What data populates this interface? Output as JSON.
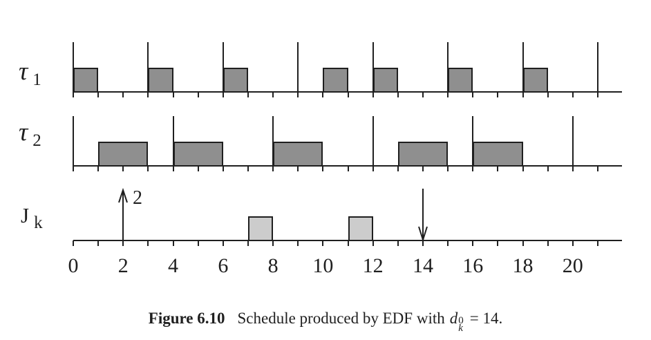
{
  "figure": {
    "caption": {
      "label": "Figure 6.10",
      "text": "Schedule produced by EDF with",
      "math_base": "d",
      "math_sup": "0",
      "math_sub": "k",
      "math_tail": "= 14."
    }
  },
  "chart_data": {
    "type": "gantt-schedule",
    "x_axis": {
      "min": 0,
      "max": 22,
      "tick_step": 1,
      "tick_range": [
        0,
        21
      ],
      "labels": [
        {
          "t": 0,
          "text": "0"
        },
        {
          "t": 2,
          "text": "2"
        },
        {
          "t": 4,
          "text": "4"
        },
        {
          "t": 6,
          "text": "6"
        },
        {
          "t": 8,
          "text": "8"
        },
        {
          "t": 10,
          "text": "10"
        },
        {
          "t": 12,
          "text": "12"
        },
        {
          "t": 14,
          "text": "14"
        },
        {
          "t": 16,
          "text": "16"
        },
        {
          "t": 18,
          "text": "18"
        },
        {
          "t": 20,
          "text": "20"
        }
      ]
    },
    "rows": [
      {
        "id": "tau1",
        "label": "τ",
        "sub": "1",
        "release_marks": [
          0,
          3,
          6,
          9,
          12,
          15,
          18,
          21
        ],
        "exec_blocks": [
          [
            0,
            1
          ],
          [
            3,
            4
          ],
          [
            6,
            7
          ],
          [
            10,
            11
          ],
          [
            12,
            13
          ],
          [
            15,
            16
          ],
          [
            18,
            19
          ]
        ],
        "block_color": "#8f8f8f"
      },
      {
        "id": "tau2",
        "label": "τ",
        "sub": "2",
        "release_marks": [
          0,
          4,
          8,
          12,
          16,
          20
        ],
        "exec_blocks": [
          [
            1,
            3
          ],
          [
            4,
            6
          ],
          [
            8,
            10
          ],
          [
            13,
            15
          ],
          [
            16,
            18
          ]
        ],
        "block_color": "#8f8f8f"
      },
      {
        "id": "jk",
        "label": "J",
        "sub": "k",
        "arrival": {
          "t": 2,
          "label": "2"
        },
        "deadline": {
          "t": 14
        },
        "exec_blocks": [
          [
            7,
            8
          ],
          [
            11,
            12
          ]
        ],
        "block_color": "#cccccc"
      }
    ],
    "colors": {
      "stroke": "#1f1f1f",
      "periodic_block": "#8f8f8f",
      "aperiodic_block": "#cccccc",
      "background": "#ffffff"
    }
  }
}
